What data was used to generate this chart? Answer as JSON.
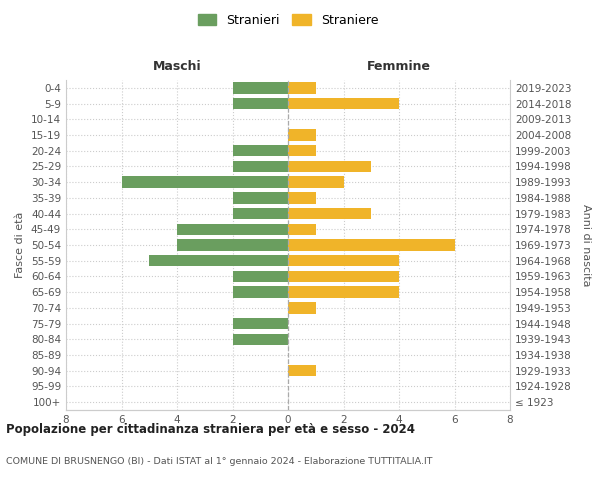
{
  "age_groups": [
    "100+",
    "95-99",
    "90-94",
    "85-89",
    "80-84",
    "75-79",
    "70-74",
    "65-69",
    "60-64",
    "55-59",
    "50-54",
    "45-49",
    "40-44",
    "35-39",
    "30-34",
    "25-29",
    "20-24",
    "15-19",
    "10-14",
    "5-9",
    "0-4"
  ],
  "birth_years": [
    "≤ 1923",
    "1924-1928",
    "1929-1933",
    "1934-1938",
    "1939-1943",
    "1944-1948",
    "1949-1953",
    "1954-1958",
    "1959-1963",
    "1964-1968",
    "1969-1973",
    "1974-1978",
    "1979-1983",
    "1984-1988",
    "1989-1993",
    "1994-1998",
    "1999-2003",
    "2004-2008",
    "2009-2013",
    "2014-2018",
    "2019-2023"
  ],
  "maschi": [
    0,
    0,
    0,
    0,
    2,
    2,
    0,
    2,
    2,
    5,
    4,
    4,
    2,
    2,
    6,
    2,
    2,
    0,
    0,
    2,
    2
  ],
  "femmine": [
    0,
    0,
    1,
    0,
    0,
    0,
    1,
    4,
    4,
    4,
    6,
    1,
    3,
    1,
    2,
    3,
    1,
    1,
    0,
    4,
    1
  ],
  "color_maschi": "#6a9e5f",
  "color_femmine": "#f0b429",
  "title": "Popolazione per cittadinanza straniera per età e sesso - 2024",
  "subtitle": "COMUNE DI BRUSNENGO (BI) - Dati ISTAT al 1° gennaio 2024 - Elaborazione TUTTITALIA.IT",
  "xlabel_left": "Maschi",
  "xlabel_right": "Femmine",
  "ylabel_left": "Fasce di età",
  "ylabel_right": "Anni di nascita",
  "legend_maschi": "Stranieri",
  "legend_femmine": "Straniere",
  "xlim": 8,
  "background_color": "#ffffff",
  "grid_color": "#cccccc"
}
